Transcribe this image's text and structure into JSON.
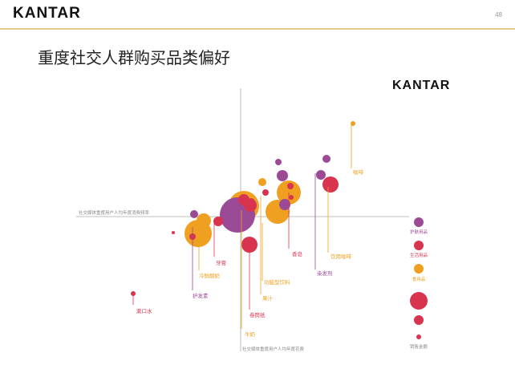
{
  "header": {
    "brand": "KANTAR",
    "page_number": "48"
  },
  "title": "重度社交人群购买品类偏好",
  "chart_brand": "KANTAR",
  "colors": {
    "purple": "#9b4a96",
    "red": "#d9344f",
    "orange": "#f0a020",
    "axis": "#aaaaaa",
    "rule": "#e2c98e"
  },
  "chart_data": {
    "type": "scatter",
    "title": "",
    "xlabel": "社交媒体重度用户人均年度消费频率",
    "ylabel": "社交媒体重度用户人均年度花费",
    "series": [
      {
        "name": "护肤用品",
        "color": "#9b4a96",
        "points": [
          {
            "x": -4,
            "y": 2,
            "r": 22
          },
          {
            "x": 55,
            "y": 15,
            "r": 7
          },
          {
            "x": 52,
            "y": 51,
            "r": 7
          },
          {
            "x": 47,
            "y": 68,
            "r": 4
          },
          {
            "x": 100,
            "y": 52,
            "r": 6
          },
          {
            "x": 107,
            "y": 72,
            "r": 5
          },
          {
            "x": -58,
            "y": 3,
            "r": 5
          },
          {
            "x": 8,
            "y": 2,
            "r": 9
          }
        ]
      },
      {
        "name": "生活用品",
        "color": "#d9344f",
        "points": [
          {
            "x": 62,
            "y": 38,
            "r": 4
          },
          {
            "x": 13,
            "y": 18,
            "r": 5
          },
          {
            "x": -28,
            "y": -6,
            "r": 6
          },
          {
            "x": 31,
            "y": 30,
            "r": 4
          },
          {
            "x": 63,
            "y": 24,
            "r": 3
          },
          {
            "x": -60,
            "y": -25,
            "r": 4
          },
          {
            "x": 112,
            "y": 40,
            "r": 10
          },
          {
            "x": 11,
            "y": -35,
            "r": 10
          },
          {
            "x": -84,
            "y": -20,
            "r": 2
          },
          {
            "x": 12,
            "y": 14,
            "r": 8
          },
          {
            "x": 4,
            "y": 21,
            "r": 7
          },
          {
            "x": -134,
            "y": -96,
            "r": 3
          }
        ]
      },
      {
        "name": "食用品",
        "color": "#f0a020",
        "points": [
          {
            "x": 60,
            "y": 30,
            "r": 15
          },
          {
            "x": 4,
            "y": 13,
            "r": 19
          },
          {
            "x": -53,
            "y": -21,
            "r": 17
          },
          {
            "x": 46,
            "y": 6,
            "r": 15
          },
          {
            "x": -46,
            "y": -5,
            "r": 9
          },
          {
            "x": 27,
            "y": 43,
            "r": 5
          },
          {
            "x": 140,
            "y": 116,
            "r": 3
          }
        ]
      }
    ],
    "annotations": [
      {
        "text": "牙膏",
        "color": "#d9344f"
      },
      {
        "text": "冷鲜酸奶",
        "color": "#f0a020"
      },
      {
        "text": "护发素",
        "color": "#9b4a96"
      },
      {
        "text": "漱口水",
        "color": "#d9344f"
      },
      {
        "text": "卷筒纸",
        "color": "#d9344f"
      },
      {
        "text": "牛奶",
        "color": "#f0a020"
      },
      {
        "text": "果汁",
        "color": "#f0a020"
      },
      {
        "text": "功能型饮料",
        "color": "#f0a020"
      },
      {
        "text": "香皂",
        "color": "#d9344f"
      },
      {
        "text": "染发剂",
        "color": "#9b4a96"
      },
      {
        "text": "饮用咖啡",
        "color": "#f0a020"
      },
      {
        "text": "咖啡",
        "color": "#f0a020"
      }
    ],
    "legend": {
      "position": "right",
      "categories": [
        {
          "label": "护肤用品",
          "color": "#9b4a96"
        },
        {
          "label": "生活用品",
          "color": "#d9344f"
        },
        {
          "label": "食用品",
          "color": "#f0a020"
        }
      ],
      "size_label": "销售金额"
    }
  }
}
